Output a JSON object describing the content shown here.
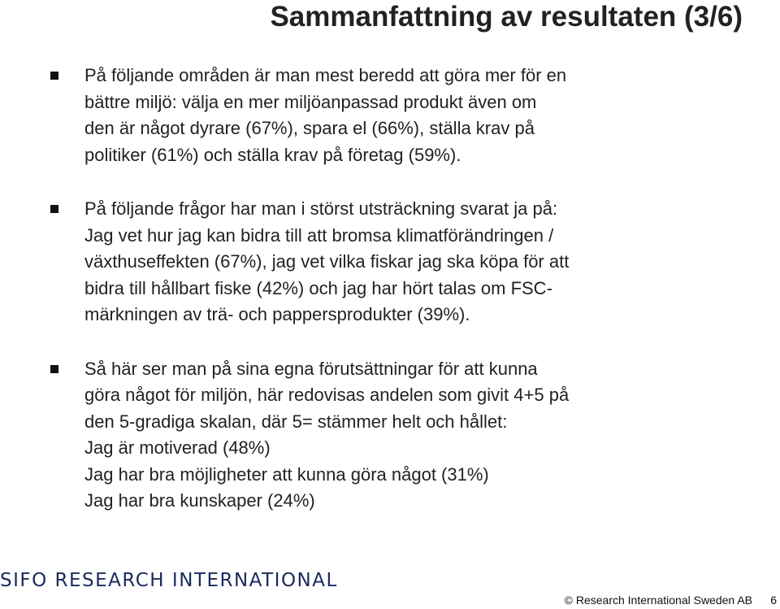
{
  "slide": {
    "title": "Sammanfattning av resultaten (3/6)"
  },
  "bullets": [
    {
      "lines": [
        "På följande områden är man mest beredd att göra mer för en",
        "bättre miljö: välja en mer miljöanpassad produkt även om",
        "den är något dyrare (67%), spara el (66%), ställa krav på",
        "politiker (61%) och ställa krav på företag (59%)."
      ]
    },
    {
      "lines": [
        "På följande frågor har man i störst utsträckning svarat ja på:",
        "Jag vet hur jag kan bidra till att bromsa klimatförändringen /",
        "växthuseffekten (67%), jag vet vilka fiskar jag ska köpa för att",
        "bidra till hållbart fiske (42%) och jag har hört talas om FSC-",
        "märkningen av trä- och pappersprodukter (39%)."
      ]
    },
    {
      "lines": [
        "Så här ser man på sina egna förutsättningar för att kunna",
        "göra något för miljön, här redovisas andelen som givit 4+5 på",
        "den 5-gradiga skalan, där 5= stämmer helt och hållet:",
        "Jag är motiverad (48%)",
        "Jag har bra möjligheter att kunna göra något (31%)",
        "Jag har bra kunskaper (24%)"
      ]
    }
  ],
  "footer": {
    "logo_text": "SIFO RESEARCH INTERNATIONAL",
    "copyright": "© Research International Sweden AB",
    "page_number": "6"
  }
}
